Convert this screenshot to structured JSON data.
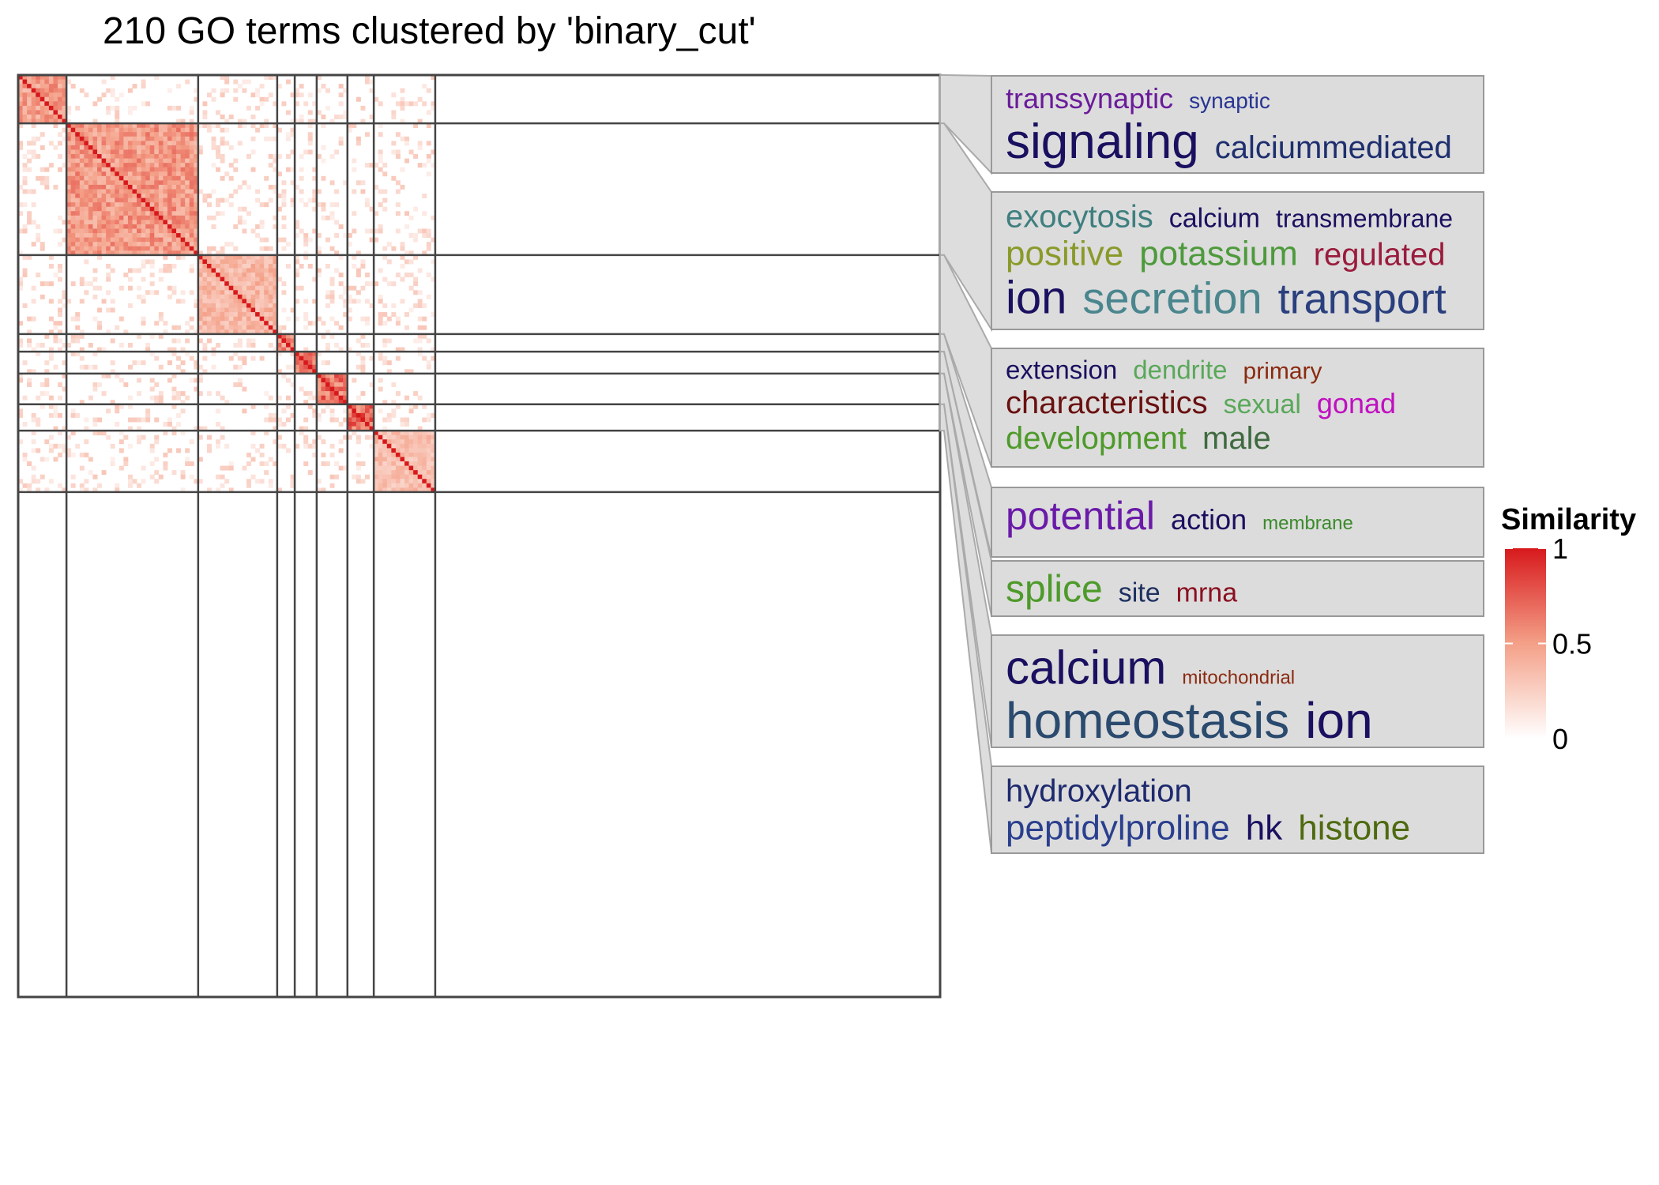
{
  "chart_data": {
    "type": "heatmap",
    "title": "210 GO terms clustered by 'binary_cut'",
    "n_terms": 210,
    "clusters": [
      {
        "size": 11,
        "similarity": 0.6,
        "words": [
          {
            "text": "transsynaptic",
            "color": "#6a1b9a"
          },
          {
            "text": "synaptic",
            "color": "#283593"
          },
          {
            "text": "signaling",
            "color": "#1a1060"
          },
          {
            "text": "calciummediated",
            "color": "#1e2f6e"
          }
        ]
      },
      {
        "size": 30,
        "similarity": 0.62,
        "words": [
          {
            "text": "exocytosis",
            "color": "#3f7f7f"
          },
          {
            "text": "calcium",
            "color": "#1a1060"
          },
          {
            "text": "transmembrane",
            "color": "#1a1060"
          },
          {
            "text": "positive",
            "color": "#8a9a2a"
          },
          {
            "text": "potassium",
            "color": "#4e9a3c"
          },
          {
            "text": "regulated",
            "color": "#9a1b3c"
          },
          {
            "text": "ion",
            "color": "#1a1060"
          },
          {
            "text": "secretion",
            "color": "#4a868e"
          },
          {
            "text": "transport",
            "color": "#2a3f7e"
          }
        ]
      },
      {
        "size": 18,
        "similarity": 0.45,
        "words": [
          {
            "text": "extension",
            "color": "#1a1060"
          },
          {
            "text": "dendrite",
            "color": "#5aa85a"
          },
          {
            "text": "primary",
            "color": "#8a2a10"
          },
          {
            "text": "characteristics",
            "color": "#6a1010"
          },
          {
            "text": "sexual",
            "color": "#5aa85a"
          },
          {
            "text": "gonad",
            "color": "#c010c0"
          },
          {
            "text": "development",
            "color": "#4e9a2a"
          },
          {
            "text": "male",
            "color": "#3f6a3f"
          }
        ]
      },
      {
        "size": 4,
        "similarity": 0.7,
        "words": [
          {
            "text": "potential",
            "color": "#6a1aa8"
          },
          {
            "text": "action",
            "color": "#1a1060"
          },
          {
            "text": "membrane",
            "color": "#3a8a2a"
          }
        ]
      },
      {
        "size": 5,
        "similarity": 0.75,
        "words": [
          {
            "text": "splice",
            "color": "#4e9a2a"
          },
          {
            "text": "site",
            "color": "#1e3060"
          },
          {
            "text": "mrna",
            "color": "#8a1020"
          }
        ]
      },
      {
        "size": 7,
        "similarity": 0.8,
        "words": [
          {
            "text": "calcium",
            "color": "#1a1060"
          },
          {
            "text": "mitochondrial",
            "color": "#8a2a10"
          },
          {
            "text": "homeostasis",
            "color": "#2a4a6e"
          },
          {
            "text": "ion",
            "color": "#1a1060"
          }
        ]
      },
      {
        "size": 6,
        "similarity": 0.85,
        "words": [
          {
            "text": "hydroxylation",
            "color": "#1e2a6e"
          },
          {
            "text": "peptidylproline",
            "color": "#2a3f8e"
          },
          {
            "text": "hk",
            "color": "#1a1060"
          },
          {
            "text": "histone",
            "color": "#4e6a10"
          }
        ]
      },
      {
        "size": 14,
        "similarity": 0.4,
        "words": []
      },
      {
        "size": 115,
        "similarity": 0.0,
        "words": []
      }
    ],
    "legend": {
      "title": "Similarity",
      "ticks": [
        "1",
        "0.5",
        "0"
      ],
      "scale": [
        0,
        1
      ],
      "low_color": "#ffffff",
      "mid_color": "#f4a088",
      "high_color": "#d7191c"
    }
  }
}
